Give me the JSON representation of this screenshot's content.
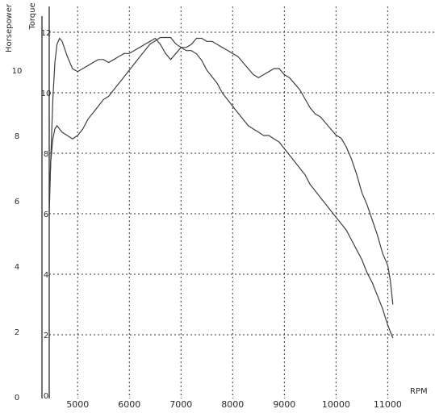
{
  "chart_data": {
    "type": "line",
    "xlabel": "RPM",
    "ylabel_outer": "Horsepower",
    "ylabel_inner": "Torque",
    "x_ticks": [
      5000,
      6000,
      7000,
      8000,
      9000,
      10000,
      11000
    ],
    "x_tick_labels": [
      "5000",
      "6000",
      "7000",
      "8000",
      "9000",
      "10000",
      "11000"
    ],
    "y_outer_ticks": [
      0,
      2,
      4,
      6,
      8,
      10
    ],
    "y_outer_tick_labels": [
      "0",
      "2",
      "4",
      "6",
      "8",
      "10"
    ],
    "y_inner_ticks": [
      0,
      2,
      4,
      6,
      8,
      10,
      12
    ],
    "y_inner_tick_labels": [
      "0",
      "2",
      "4",
      "6",
      "8",
      "10",
      "12"
    ],
    "xlim": [
      4450,
      11900
    ],
    "ylim_inner": [
      0,
      12.5
    ],
    "ylim_outer": [
      0,
      12.2
    ],
    "grid": true,
    "series": [
      {
        "axis": "inner",
        "x": [
          4450,
          4480,
          4520,
          4560,
          4600,
          4650,
          4700,
          4800,
          4900,
          5000,
          5100,
          5200,
          5300,
          5400,
          5500,
          5600,
          5700,
          5800,
          5900,
          6000,
          6100,
          6200,
          6300,
          6400,
          6500,
          6600,
          6700,
          6800,
          6900,
          7000,
          7100,
          7200,
          7300,
          7400,
          7500,
          7600,
          7700,
          7800,
          7900,
          8000,
          8100,
          8200,
          8300,
          8400,
          8500,
          8600,
          8700,
          8800,
          8900,
          9000,
          9100,
          9200,
          9300,
          9400,
          9500,
          9600,
          9700,
          9800,
          9900,
          10000,
          10100,
          10200,
          10300,
          10400,
          10500,
          10600,
          10700,
          10800,
          10900,
          11000,
          11050,
          11100
        ],
        "values": [
          6.0,
          7.8,
          9.8,
          11.0,
          11.6,
          11.8,
          11.7,
          11.2,
          10.8,
          10.7,
          10.8,
          10.9,
          11.0,
          11.1,
          11.1,
          11.0,
          11.1,
          11.2,
          11.3,
          11.3,
          11.4,
          11.5,
          11.6,
          11.7,
          11.8,
          11.6,
          11.3,
          11.1,
          11.3,
          11.5,
          11.5,
          11.6,
          11.8,
          11.8,
          11.7,
          11.7,
          11.6,
          11.5,
          11.4,
          11.3,
          11.2,
          11.0,
          10.8,
          10.6,
          10.5,
          10.6,
          10.7,
          10.8,
          10.8,
          10.6,
          10.5,
          10.3,
          10.1,
          9.8,
          9.5,
          9.3,
          9.2,
          9.0,
          8.8,
          8.6,
          8.5,
          8.2,
          7.8,
          7.3,
          6.7,
          6.3,
          5.8,
          5.3,
          4.7,
          4.3,
          3.8,
          3.0
        ]
      },
      {
        "axis": "outer",
        "x": [
          4450,
          4480,
          4520,
          4560,
          4600,
          4650,
          4700,
          4800,
          4900,
          5000,
          5100,
          5200,
          5300,
          5400,
          5500,
          5600,
          5700,
          5800,
          5900,
          6000,
          6100,
          6200,
          6300,
          6400,
          6500,
          6600,
          6700,
          6800,
          6900,
          7000,
          7100,
          7200,
          7300,
          7400,
          7500,
          7600,
          7700,
          7800,
          7900,
          8000,
          8100,
          8200,
          8300,
          8400,
          8500,
          8600,
          8700,
          8800,
          8900,
          9000,
          9100,
          9200,
          9300,
          9400,
          9500,
          9600,
          9700,
          9800,
          9900,
          10000,
          10100,
          10200,
          10300,
          10400,
          10500,
          10600,
          10700,
          10800,
          10900,
          11000,
          11050,
          11100
        ],
        "values": [
          6.0,
          7.2,
          7.9,
          8.2,
          8.3,
          8.2,
          8.1,
          8.0,
          7.9,
          8.0,
          8.2,
          8.5,
          8.7,
          8.9,
          9.1,
          9.2,
          9.4,
          9.6,
          9.8,
          10.0,
          10.2,
          10.4,
          10.6,
          10.8,
          10.9,
          11.0,
          11.0,
          11.0,
          10.8,
          10.7,
          10.6,
          10.6,
          10.5,
          10.3,
          10.0,
          9.8,
          9.6,
          9.3,
          9.1,
          8.9,
          8.7,
          8.5,
          8.3,
          8.2,
          8.1,
          8.0,
          8.0,
          7.9,
          7.8,
          7.6,
          7.4,
          7.2,
          7.0,
          6.8,
          6.5,
          6.3,
          6.1,
          5.9,
          5.7,
          5.5,
          5.3,
          5.1,
          4.8,
          4.5,
          4.2,
          3.8,
          3.5,
          3.1,
          2.7,
          2.2,
          2.0,
          1.8
        ]
      }
    ]
  }
}
